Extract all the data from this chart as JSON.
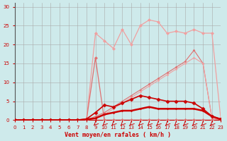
{
  "x": [
    0,
    1,
    2,
    3,
    4,
    5,
    6,
    7,
    8,
    9,
    10,
    11,
    12,
    13,
    14,
    15,
    16,
    17,
    18,
    19,
    20,
    21,
    22,
    23
  ],
  "line_jagged_y": [
    0,
    0,
    0,
    0,
    0,
    0,
    0,
    0,
    0,
    23,
    21,
    19,
    24,
    20,
    25,
    26.5,
    26,
    23,
    23.5,
    23,
    24,
    23,
    23,
    0
  ],
  "line_spike_y": [
    0,
    0,
    0,
    0,
    0,
    0,
    0,
    0,
    0,
    16.5,
    0,
    0,
    0,
    0,
    0,
    0,
    0,
    0,
    0,
    0,
    0,
    0,
    0,
    0
  ],
  "line_diag1_y": [
    0,
    0,
    0,
    0,
    0,
    0,
    0,
    0,
    0,
    1,
    2,
    3.5,
    5,
    6.5,
    8,
    9.5,
    11,
    12.5,
    14,
    15.5,
    18.5,
    15,
    0.5,
    0
  ],
  "line_diag2_y": [
    0,
    0,
    0,
    0,
    0,
    0,
    0,
    0,
    0,
    0.5,
    1.5,
    3,
    4.5,
    6,
    7.5,
    9,
    10.5,
    12,
    13.5,
    15,
    16.5,
    15,
    0.5,
    0
  ],
  "line_dark_hi_y": [
    0,
    0,
    0,
    0,
    0,
    0,
    0,
    0,
    0.3,
    2,
    4,
    3.5,
    4.5,
    5.5,
    6.5,
    6,
    5.5,
    5,
    5,
    5,
    4.5,
    3,
    1,
    0.3
  ],
  "line_dark_lo_y": [
    0,
    0,
    0,
    0,
    0,
    0,
    0,
    0,
    0.2,
    0.5,
    1.5,
    2,
    2.5,
    2.5,
    3,
    3.5,
    3,
    3,
    3,
    3,
    3,
    2.5,
    1,
    0.2
  ],
  "arrow_x_start": [
    9,
    10,
    11,
    12,
    13,
    14,
    15,
    16,
    17,
    18,
    19,
    20,
    21,
    22
  ],
  "bg_color": "#ceeaeb",
  "color_light_pink": "#f0a0a0",
  "color_medium_pink": "#e07070",
  "color_dark_red": "#cc0000",
  "xlabel": "Vent moyen/en rafales ( km/h )",
  "yticks": [
    0,
    5,
    10,
    15,
    20,
    25,
    30
  ],
  "xticks": [
    0,
    1,
    2,
    3,
    4,
    5,
    6,
    7,
    8,
    9,
    10,
    11,
    12,
    13,
    14,
    15,
    16,
    17,
    18,
    19,
    20,
    21,
    22,
    23
  ],
  "xlim": [
    0,
    23
  ],
  "ylim": [
    0,
    31
  ]
}
